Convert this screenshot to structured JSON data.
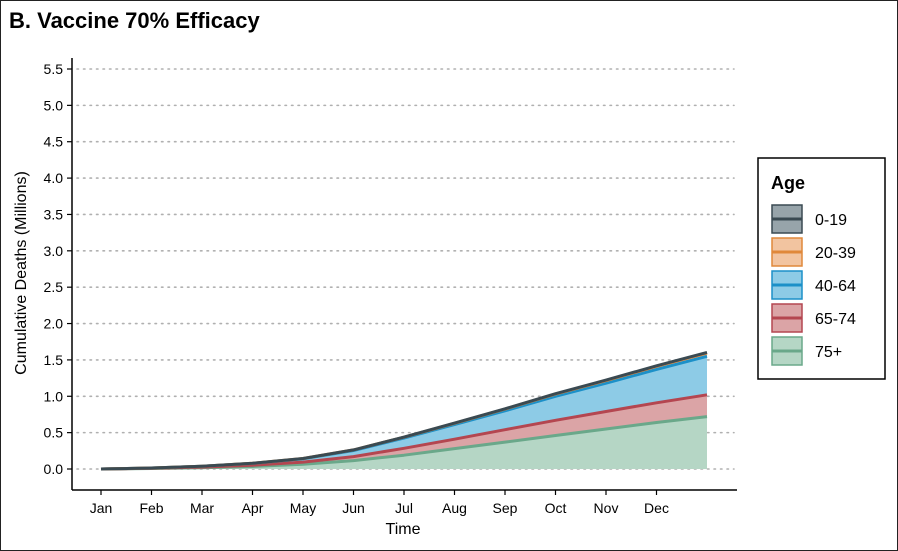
{
  "chart_data": {
    "type": "area",
    "title": "B. Vaccine 70% Efficacy",
    "xlabel": "Time",
    "ylabel": "Cumulative Deaths (Millions)",
    "ylim": [
      0,
      5.5
    ],
    "yticks": [
      "0.0",
      "0.5",
      "1.0",
      "1.5",
      "2.0",
      "2.5",
      "3.0",
      "3.5",
      "4.0",
      "4.5",
      "5.0",
      "5.5"
    ],
    "ytick_values": [
      0,
      0.5,
      1,
      1.5,
      2,
      2.5,
      3,
      3.5,
      4,
      4.5,
      5,
      5.5
    ],
    "xticks": [
      "Jan",
      "Feb",
      "Mar",
      "Apr",
      "May",
      "Jun",
      "Jul",
      "Aug",
      "Sep",
      "Oct",
      "Nov",
      "Dec"
    ],
    "x_months": [
      0,
      1,
      2,
      3,
      4,
      5,
      6,
      7,
      8,
      9,
      10,
      11,
      12
    ],
    "grid": "horizontal dotted",
    "legend": {
      "title": "Age",
      "position": "right",
      "entries": [
        "0-19",
        "20-39",
        "40-64",
        "65-74",
        "75+"
      ]
    },
    "stacked": true,
    "series": [
      {
        "name": "75+",
        "color": "#6aa88a",
        "fill": "#b5d6c5",
        "values": [
          0.0,
          0.007,
          0.018,
          0.035,
          0.065,
          0.115,
          0.19,
          0.28,
          0.37,
          0.46,
          0.55,
          0.64,
          0.72
        ]
      },
      {
        "name": "65-74",
        "color": "#b44650",
        "fill": "#dba4a6",
        "values": [
          0.0,
          0.003,
          0.008,
          0.017,
          0.03,
          0.055,
          0.095,
          0.13,
          0.17,
          0.21,
          0.24,
          0.27,
          0.3
        ]
      },
      {
        "name": "40-64",
        "color": "#1c90c8",
        "fill": "#8dcbe6",
        "values": [
          0.0,
          0.004,
          0.012,
          0.025,
          0.045,
          0.085,
          0.14,
          0.2,
          0.26,
          0.33,
          0.39,
          0.46,
          0.53
        ]
      },
      {
        "name": "20-39",
        "color": "#e0883a",
        "fill": "#f2c4a0",
        "values": [
          0.0,
          0.0,
          0.001,
          0.002,
          0.004,
          0.007,
          0.012,
          0.018,
          0.024,
          0.03,
          0.036,
          0.042,
          0.045
        ]
      },
      {
        "name": "0-19",
        "color": "#3a4a52",
        "fill": "#97a4aa",
        "values": [
          0.0,
          0.0,
          0.0,
          0.0,
          0.001,
          0.001,
          0.002,
          0.003,
          0.004,
          0.005,
          0.006,
          0.007,
          0.008
        ]
      }
    ]
  }
}
